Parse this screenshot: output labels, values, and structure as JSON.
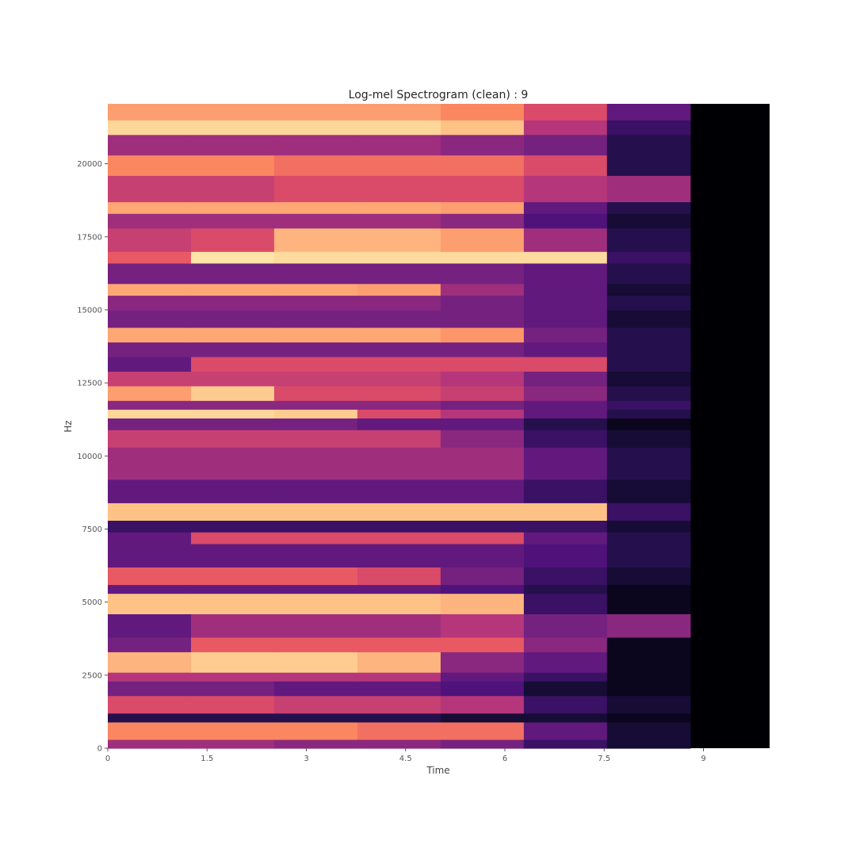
{
  "chart_data": {
    "type": "heatmap",
    "title": "Log-mel Spectrogram (clean) : 9",
    "xlabel": "Time",
    "ylabel": "Hz",
    "xlim": [
      0,
      10
    ],
    "ylim": [
      0,
      22050
    ],
    "x_ticks": [
      0,
      1.5,
      3,
      4.5,
      6,
      7.5,
      9
    ],
    "x_tick_labels": [
      "0",
      "1.5",
      "3",
      "4.5",
      "6",
      "7.5",
      "9"
    ],
    "y_ticks": [
      0,
      2500,
      5000,
      7500,
      10000,
      12500,
      15000,
      17500,
      20000
    ],
    "y_tick_labels": [
      "0",
      "2500",
      "5000",
      "7500",
      "10000",
      "12500",
      "15000",
      "17500",
      "20000"
    ],
    "colormap": "magma",
    "colorbar": false,
    "signal_end_time": 8.8,
    "bands": [
      {
        "hz_low": 0,
        "hz_high": 300,
        "levels": [
          0.45,
          0.45,
          0.4,
          0.4,
          0.35,
          0.2,
          0.1
        ]
      },
      {
        "hz_low": 300,
        "hz_high": 900,
        "levels": [
          0.75,
          0.75,
          0.75,
          0.7,
          0.7,
          0.3,
          0.1
        ]
      },
      {
        "hz_low": 900,
        "hz_high": 1200,
        "levels": [
          0.15,
          0.15,
          0.15,
          0.15,
          0.1,
          0.1,
          0.05
        ]
      },
      {
        "hz_low": 1200,
        "hz_high": 1800,
        "levels": [
          0.6,
          0.6,
          0.55,
          0.55,
          0.5,
          0.2,
          0.1
        ]
      },
      {
        "hz_low": 1800,
        "hz_high": 2300,
        "levels": [
          0.35,
          0.35,
          0.3,
          0.3,
          0.25,
          0.1,
          0.05
        ]
      },
      {
        "hz_low": 2300,
        "hz_high": 2600,
        "levels": [
          0.5,
          0.5,
          0.5,
          0.5,
          0.3,
          0.2,
          0.05
        ]
      },
      {
        "hz_low": 2600,
        "hz_high": 3300,
        "levels": [
          0.85,
          0.9,
          0.9,
          0.85,
          0.4,
          0.3,
          0.05
        ]
      },
      {
        "hz_low": 3300,
        "hz_high": 3800,
        "levels": [
          0.35,
          0.65,
          0.65,
          0.65,
          0.65,
          0.4,
          0.05
        ]
      },
      {
        "hz_low": 3800,
        "hz_high": 4600,
        "levels": [
          0.3,
          0.45,
          0.45,
          0.45,
          0.5,
          0.35,
          0.4
        ]
      },
      {
        "hz_low": 4600,
        "hz_high": 5300,
        "levels": [
          0.88,
          0.88,
          0.88,
          0.88,
          0.85,
          0.2,
          0.05
        ]
      },
      {
        "hz_low": 5300,
        "hz_high": 5600,
        "levels": [
          0.3,
          0.3,
          0.3,
          0.3,
          0.25,
          0.15,
          0.05
        ]
      },
      {
        "hz_low": 5600,
        "hz_high": 6200,
        "levels": [
          0.65,
          0.65,
          0.65,
          0.6,
          0.35,
          0.2,
          0.1
        ]
      },
      {
        "hz_low": 6200,
        "hz_high": 7000,
        "levels": [
          0.3,
          0.3,
          0.3,
          0.3,
          0.3,
          0.25,
          0.15
        ]
      },
      {
        "hz_low": 7000,
        "hz_high": 7400,
        "levels": [
          0.3,
          0.6,
          0.6,
          0.6,
          0.6,
          0.3,
          0.15
        ]
      },
      {
        "hz_low": 7400,
        "hz_high": 7800,
        "levels": [
          0.2,
          0.2,
          0.2,
          0.2,
          0.2,
          0.2,
          0.1
        ]
      },
      {
        "hz_low": 7800,
        "hz_high": 8400,
        "levels": [
          0.88,
          0.88,
          0.88,
          0.88,
          0.88,
          0.88,
          0.2
        ]
      },
      {
        "hz_low": 8400,
        "hz_high": 9200,
        "levels": [
          0.3,
          0.3,
          0.3,
          0.3,
          0.3,
          0.2,
          0.1
        ]
      },
      {
        "hz_low": 9200,
        "hz_high": 10300,
        "levels": [
          0.45,
          0.45,
          0.45,
          0.45,
          0.45,
          0.3,
          0.15
        ]
      },
      {
        "hz_low": 10300,
        "hz_high": 10900,
        "levels": [
          0.55,
          0.55,
          0.55,
          0.55,
          0.4,
          0.2,
          0.1
        ]
      },
      {
        "hz_low": 10900,
        "hz_high": 11300,
        "levels": [
          0.35,
          0.35,
          0.35,
          0.3,
          0.3,
          0.15,
          0.05
        ]
      },
      {
        "hz_low": 11300,
        "hz_high": 11600,
        "levels": [
          0.92,
          0.92,
          0.9,
          0.6,
          0.5,
          0.3,
          0.15
        ]
      },
      {
        "hz_low": 11600,
        "hz_high": 11900,
        "levels": [
          0.4,
          0.4,
          0.4,
          0.4,
          0.35,
          0.3,
          0.2
        ]
      },
      {
        "hz_low": 11900,
        "hz_high": 12400,
        "levels": [
          0.8,
          0.9,
          0.6,
          0.6,
          0.55,
          0.4,
          0.15
        ]
      },
      {
        "hz_low": 12400,
        "hz_high": 12900,
        "levels": [
          0.55,
          0.55,
          0.55,
          0.55,
          0.5,
          0.35,
          0.1
        ]
      },
      {
        "hz_low": 12900,
        "hz_high": 13400,
        "levels": [
          0.3,
          0.6,
          0.6,
          0.6,
          0.6,
          0.6,
          0.15
        ]
      },
      {
        "hz_low": 13400,
        "hz_high": 13900,
        "levels": [
          0.35,
          0.35,
          0.35,
          0.35,
          0.35,
          0.3,
          0.15
        ]
      },
      {
        "hz_low": 13900,
        "hz_high": 14400,
        "levels": [
          0.82,
          0.82,
          0.82,
          0.82,
          0.78,
          0.35,
          0.15
        ]
      },
      {
        "hz_low": 14400,
        "hz_high": 15000,
        "levels": [
          0.35,
          0.35,
          0.35,
          0.35,
          0.35,
          0.3,
          0.1
        ]
      },
      {
        "hz_low": 15000,
        "hz_high": 15500,
        "levels": [
          0.4,
          0.4,
          0.4,
          0.4,
          0.35,
          0.3,
          0.15
        ]
      },
      {
        "hz_low": 15500,
        "hz_high": 15900,
        "levels": [
          0.82,
          0.82,
          0.82,
          0.8,
          0.45,
          0.3,
          0.1
        ]
      },
      {
        "hz_low": 15900,
        "hz_high": 16600,
        "levels": [
          0.35,
          0.35,
          0.35,
          0.35,
          0.35,
          0.3,
          0.15
        ]
      },
      {
        "hz_low": 16600,
        "hz_high": 17000,
        "levels": [
          0.65,
          0.95,
          0.93,
          0.93,
          0.93,
          0.93,
          0.2
        ]
      },
      {
        "hz_low": 17000,
        "hz_high": 17800,
        "levels": [
          0.55,
          0.6,
          0.85,
          0.85,
          0.8,
          0.45,
          0.15
        ]
      },
      {
        "hz_low": 17800,
        "hz_high": 18300,
        "levels": [
          0.45,
          0.45,
          0.45,
          0.45,
          0.4,
          0.25,
          0.1
        ]
      },
      {
        "hz_low": 18300,
        "hz_high": 18700,
        "levels": [
          0.82,
          0.82,
          0.82,
          0.82,
          0.8,
          0.3,
          0.15
        ]
      },
      {
        "hz_low": 18700,
        "hz_high": 19600,
        "levels": [
          0.55,
          0.55,
          0.6,
          0.6,
          0.6,
          0.5,
          0.45
        ]
      },
      {
        "hz_low": 19600,
        "hz_high": 20300,
        "levels": [
          0.75,
          0.75,
          0.7,
          0.7,
          0.7,
          0.6,
          0.15
        ]
      },
      {
        "hz_low": 20300,
        "hz_high": 21000,
        "levels": [
          0.45,
          0.45,
          0.45,
          0.45,
          0.4,
          0.35,
          0.15
        ]
      },
      {
        "hz_low": 21000,
        "hz_high": 21500,
        "levels": [
          0.92,
          0.92,
          0.92,
          0.92,
          0.88,
          0.5,
          0.2
        ]
      },
      {
        "hz_low": 21500,
        "hz_high": 22050,
        "levels": [
          0.8,
          0.8,
          0.8,
          0.8,
          0.75,
          0.6,
          0.3
        ]
      }
    ]
  }
}
